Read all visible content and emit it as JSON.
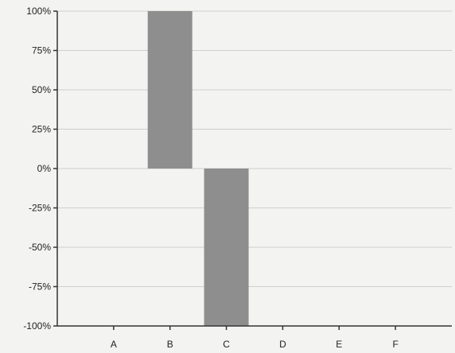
{
  "chart_data": {
    "type": "bar",
    "title": "",
    "xlabel": "",
    "ylabel": "",
    "categories": [
      "A",
      "B",
      "C",
      "D",
      "E",
      "F"
    ],
    "values": [
      0,
      100,
      -100,
      0,
      0,
      0
    ],
    "ylim": [
      -100,
      100
    ],
    "yticks": [
      100,
      75,
      50,
      25,
      0,
      -25,
      -50,
      -75,
      -100
    ],
    "ytick_labels": [
      "100%",
      "75%",
      "50%",
      "25%",
      "0%",
      "-25%",
      "-50%",
      "-75%",
      "-100%"
    ],
    "grid": true,
    "legend": "none",
    "colors": {
      "bar": "#8e8e8e",
      "grid": "#cfcfcc",
      "axis": "#333333",
      "background": "#f3f3f1"
    }
  }
}
